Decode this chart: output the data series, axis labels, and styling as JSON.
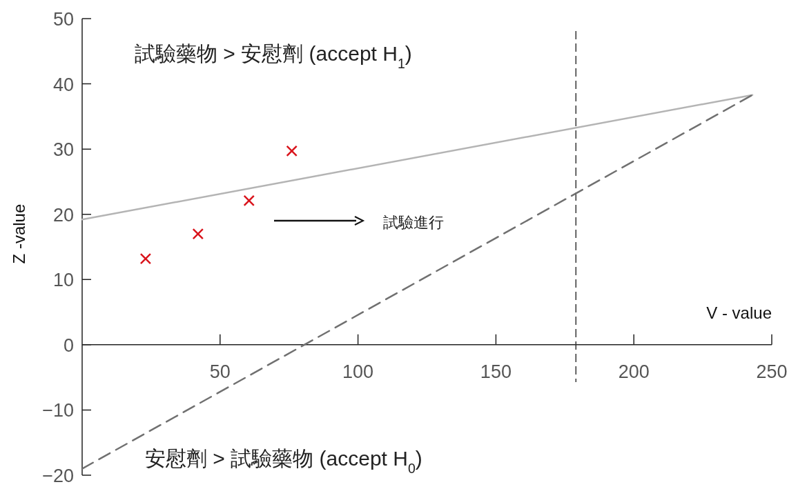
{
  "chart_data": {
    "type": "scatter",
    "xlabel": "V - value",
    "ylabel": "Z -value",
    "annotations": [
      "試驗藥物 > 安慰劑 (accept H$_{1}$)",
      "安慰劑 > 試驗藥物 (accept H$_{0}$)",
      "試驗進行"
    ],
    "xlim": [
      0,
      250
    ],
    "xticks": [
      50,
      100,
      150,
      200,
      250
    ],
    "ylim": [
      -20,
      50
    ],
    "yticks": [
      {
        "value": -20,
        "label": "−20"
      },
      {
        "value": -10,
        "label": "−10"
      },
      0,
      10,
      20,
      30,
      40,
      50
    ],
    "series": [
      {
        "color": "#d9141c",
        "marker": "cross",
        "x": [
          23,
          42,
          60.5,
          76
        ],
        "values": [
          13.2,
          17.0,
          22.1,
          29.7
        ]
      },
      {
        "type": "line",
        "color": "#b4b4b4",
        "line_style": "solid",
        "x": [
          0,
          243
        ],
        "values": [
          19.2,
          38.3
        ]
      },
      {
        "type": "line",
        "color": "#707070",
        "line_style": "dashed",
        "x": [
          0,
          243
        ],
        "values": [
          -19.0,
          38.3
        ]
      }
    ],
    "ref_lines": [
      {
        "axis": "x",
        "value": 179,
        "color": "#333333",
        "line_style": "dashed"
      }
    ],
    "grid": false
  }
}
